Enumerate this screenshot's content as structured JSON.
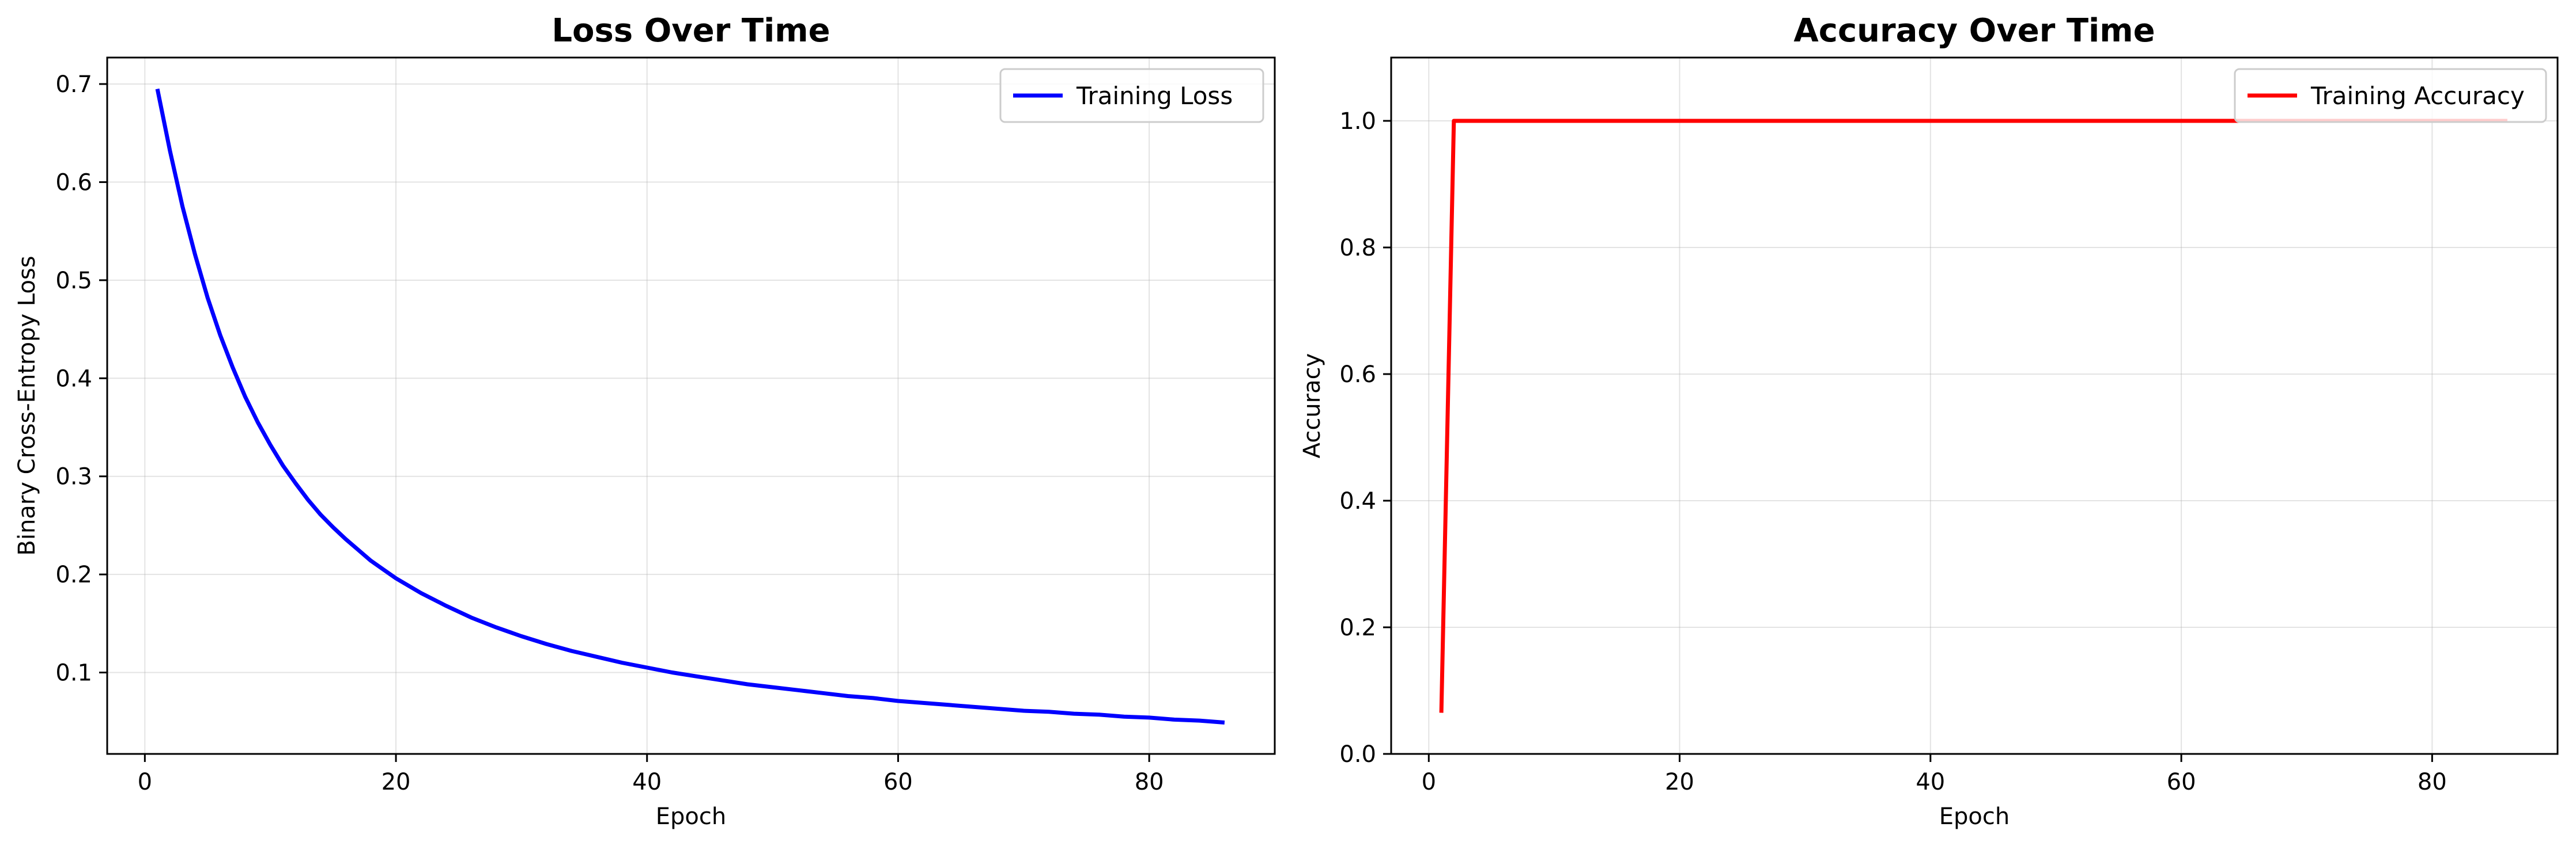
{
  "chart_data": [
    {
      "type": "line",
      "title": "Loss Over Time",
      "xlabel": "Epoch",
      "ylabel": "Binary Cross-Entropy Loss",
      "xlim": [
        -3,
        90
      ],
      "ylim": [
        0.017,
        0.727
      ],
      "xticks": [
        0,
        20,
        40,
        60,
        80
      ],
      "yticks": [
        0.1,
        0.2,
        0.3,
        0.4,
        0.5,
        0.6,
        0.7
      ],
      "xtick_labels": [
        "0",
        "20",
        "40",
        "60",
        "80"
      ],
      "ytick_labels": [
        "0.1",
        "0.2",
        "0.3",
        "0.4",
        "0.5",
        "0.6",
        "0.7"
      ],
      "grid": true,
      "legend": "upper-right",
      "series": [
        {
          "name": "Training Loss",
          "color": "#0000ff",
          "x": [
            1,
            2,
            3,
            4,
            5,
            6,
            7,
            8,
            9,
            10,
            11,
            12,
            13,
            14,
            15,
            16,
            17,
            18,
            19,
            20,
            22,
            24,
            26,
            28,
            30,
            32,
            34,
            36,
            38,
            40,
            42,
            44,
            46,
            48,
            50,
            52,
            54,
            56,
            58,
            60,
            62,
            64,
            66,
            68,
            70,
            72,
            74,
            76,
            78,
            80,
            82,
            84,
            86
          ],
          "y": [
            0.695,
            0.632,
            0.575,
            0.526,
            0.482,
            0.444,
            0.411,
            0.381,
            0.355,
            0.332,
            0.311,
            0.293,
            0.276,
            0.261,
            0.248,
            0.236,
            0.225,
            0.214,
            0.205,
            0.196,
            0.181,
            0.168,
            0.156,
            0.146,
            0.137,
            0.129,
            0.122,
            0.116,
            0.11,
            0.105,
            0.1,
            0.096,
            0.092,
            0.088,
            0.085,
            0.082,
            0.079,
            0.076,
            0.074,
            0.071,
            0.069,
            0.067,
            0.065,
            0.063,
            0.061,
            0.06,
            0.058,
            0.057,
            0.055,
            0.054,
            0.052,
            0.051,
            0.049
          ]
        }
      ]
    },
    {
      "type": "line",
      "title": "Accuracy Over Time",
      "xlabel": "Epoch",
      "ylabel": "Accuracy",
      "xlim": [
        -3,
        90
      ],
      "ylim": [
        0.0,
        1.1
      ],
      "xticks": [
        0,
        20,
        40,
        60,
        80
      ],
      "yticks": [
        0.0,
        0.2,
        0.4,
        0.6,
        0.8,
        1.0
      ],
      "xtick_labels": [
        "0",
        "20",
        "40",
        "60",
        "80"
      ],
      "ytick_labels": [
        "0.0",
        "0.2",
        "0.4",
        "0.6",
        "0.8",
        "1.0"
      ],
      "grid": true,
      "legend": "upper-right",
      "series": [
        {
          "name": "Training Accuracy",
          "color": "#ff0000",
          "x": [
            1,
            2,
            86
          ],
          "y": [
            0.065,
            1.0,
            1.0
          ]
        }
      ]
    }
  ]
}
